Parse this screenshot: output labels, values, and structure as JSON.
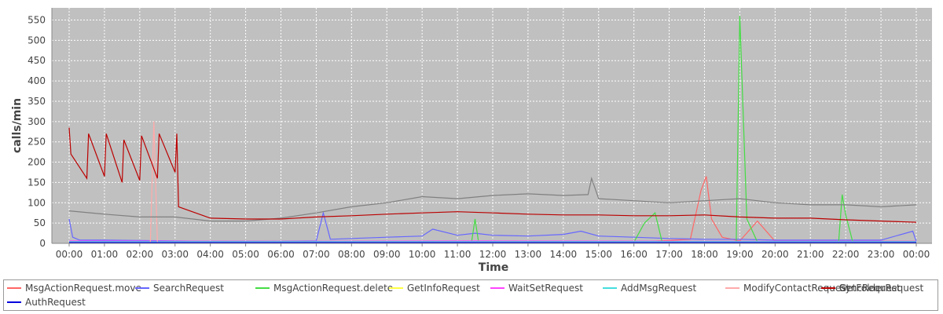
{
  "chart_data": {
    "type": "line",
    "title": "",
    "xlabel": "Time",
    "ylabel": "calls/min",
    "ylim": [
      0,
      580
    ],
    "y_ticks": [
      "0",
      "50",
      "100",
      "150",
      "200",
      "250",
      "300",
      "350",
      "400",
      "450",
      "500",
      "550"
    ],
    "x_ticks": [
      "00:00",
      "01:00",
      "02:00",
      "03:00",
      "04:00",
      "05:00",
      "06:00",
      "07:00",
      "08:00",
      "09:00",
      "10:00",
      "11:00",
      "12:00",
      "13:00",
      "14:00",
      "15:00",
      "16:00",
      "17:00",
      "18:00",
      "19:00",
      "20:00",
      "21:00",
      "22:00",
      "23:00",
      "00:00"
    ],
    "grid": true,
    "legend_position": "bottom",
    "series": [
      {
        "name": "MsgActionRequest.move",
        "color": "#ff6666",
        "x": [
          0,
          3,
          6,
          9,
          12,
          15,
          16.5,
          17.6,
          17.9,
          18.05,
          18.2,
          18.5,
          19,
          19.5,
          20,
          21,
          22,
          23,
          24
        ],
        "y": [
          5,
          4,
          4,
          5,
          5,
          5,
          5,
          10,
          130,
          165,
          60,
          15,
          6,
          55,
          5,
          5,
          5,
          5,
          5
        ]
      },
      {
        "name": "SearchRequest",
        "color": "#6666ff",
        "x": [
          0,
          0.1,
          0.3,
          1,
          2,
          3,
          4,
          5,
          6,
          7,
          7.2,
          7.4,
          8,
          9,
          10,
          10.3,
          11,
          11.5,
          12,
          13,
          14,
          14.5,
          15,
          16,
          17,
          18,
          19,
          20,
          21,
          22,
          23,
          23.9,
          24
        ],
        "y": [
          60,
          15,
          8,
          8,
          7,
          6,
          5,
          5,
          5,
          6,
          75,
          10,
          12,
          15,
          18,
          35,
          20,
          25,
          20,
          18,
          22,
          30,
          18,
          15,
          12,
          10,
          10,
          8,
          8,
          8,
          8,
          30,
          5
        ]
      },
      {
        "name": "MsgActionRequest.delete",
        "color": "#44dd44",
        "x": [
          0,
          10,
          11.4,
          11.5,
          11.6,
          16,
          16.3,
          16.6,
          16.8,
          18,
          18.9,
          19.0,
          19.2,
          19.5,
          20,
          21.8,
          21.9,
          22.0,
          22.2,
          24
        ],
        "y": [
          3,
          3,
          3,
          60,
          3,
          3,
          50,
          75,
          3,
          3,
          3,
          560,
          60,
          3,
          3,
          3,
          120,
          70,
          3,
          3
        ]
      },
      {
        "name": "GetInfoRequest",
        "color": "#ffff44",
        "x": [
          0,
          6,
          12,
          18,
          24
        ],
        "y": [
          3,
          3,
          4,
          3,
          3
        ]
      },
      {
        "name": "WaitSetRequest",
        "color": "#ff44ff",
        "x": [
          0,
          6,
          12,
          18,
          24
        ],
        "y": [
          6,
          5,
          6,
          5,
          5
        ]
      },
      {
        "name": "AddMsgRequest",
        "color": "#44dddd",
        "x": [
          0,
          6,
          12,
          18,
          24
        ],
        "y": [
          4,
          4,
          4,
          4,
          4
        ]
      },
      {
        "name": "ModifyContactRequest",
        "color": "#ffaaaa",
        "x": [
          0,
          2.3,
          2.4,
          2.5,
          6,
          12,
          18,
          24
        ],
        "y": [
          2,
          2,
          300,
          2,
          2,
          2,
          2,
          2
        ]
      },
      {
        "name": "GetFolderRequest",
        "color": "#808080",
        "x": [
          0,
          1,
          2,
          3,
          4,
          5,
          6,
          7,
          8,
          9,
          10,
          11,
          12,
          13,
          14,
          14.7,
          14.8,
          15,
          16,
          17,
          18,
          19,
          20,
          21,
          22,
          23,
          24
        ],
        "y": [
          80,
          72,
          65,
          65,
          55,
          55,
          62,
          75,
          90,
          100,
          115,
          110,
          118,
          122,
          118,
          120,
          160,
          110,
          105,
          100,
          105,
          110,
          100,
          95,
          95,
          90,
          95
        ]
      },
      {
        "name": "SyncRequest",
        "color": "#bb0000",
        "x": [
          0,
          0.05,
          0.5,
          0.55,
          1,
          1.05,
          1.5,
          1.55,
          2,
          2.05,
          2.5,
          2.55,
          3,
          3.05,
          3.1,
          4,
          5,
          6,
          7,
          8,
          9,
          10,
          11,
          12,
          13,
          14,
          15,
          16,
          17,
          18,
          19,
          20,
          21,
          22,
          23,
          24
        ],
        "y": [
          285,
          220,
          160,
          270,
          165,
          270,
          150,
          255,
          155,
          265,
          160,
          270,
          175,
          270,
          90,
          62,
          60,
          60,
          65,
          68,
          72,
          75,
          78,
          75,
          72,
          70,
          70,
          68,
          68,
          70,
          65,
          62,
          62,
          58,
          55,
          52
        ]
      },
      {
        "name": "AuthRequest",
        "color": "#0000dd",
        "x": [
          0,
          6,
          12,
          18,
          24
        ],
        "y": [
          2,
          2,
          2,
          2,
          2
        ]
      }
    ]
  }
}
